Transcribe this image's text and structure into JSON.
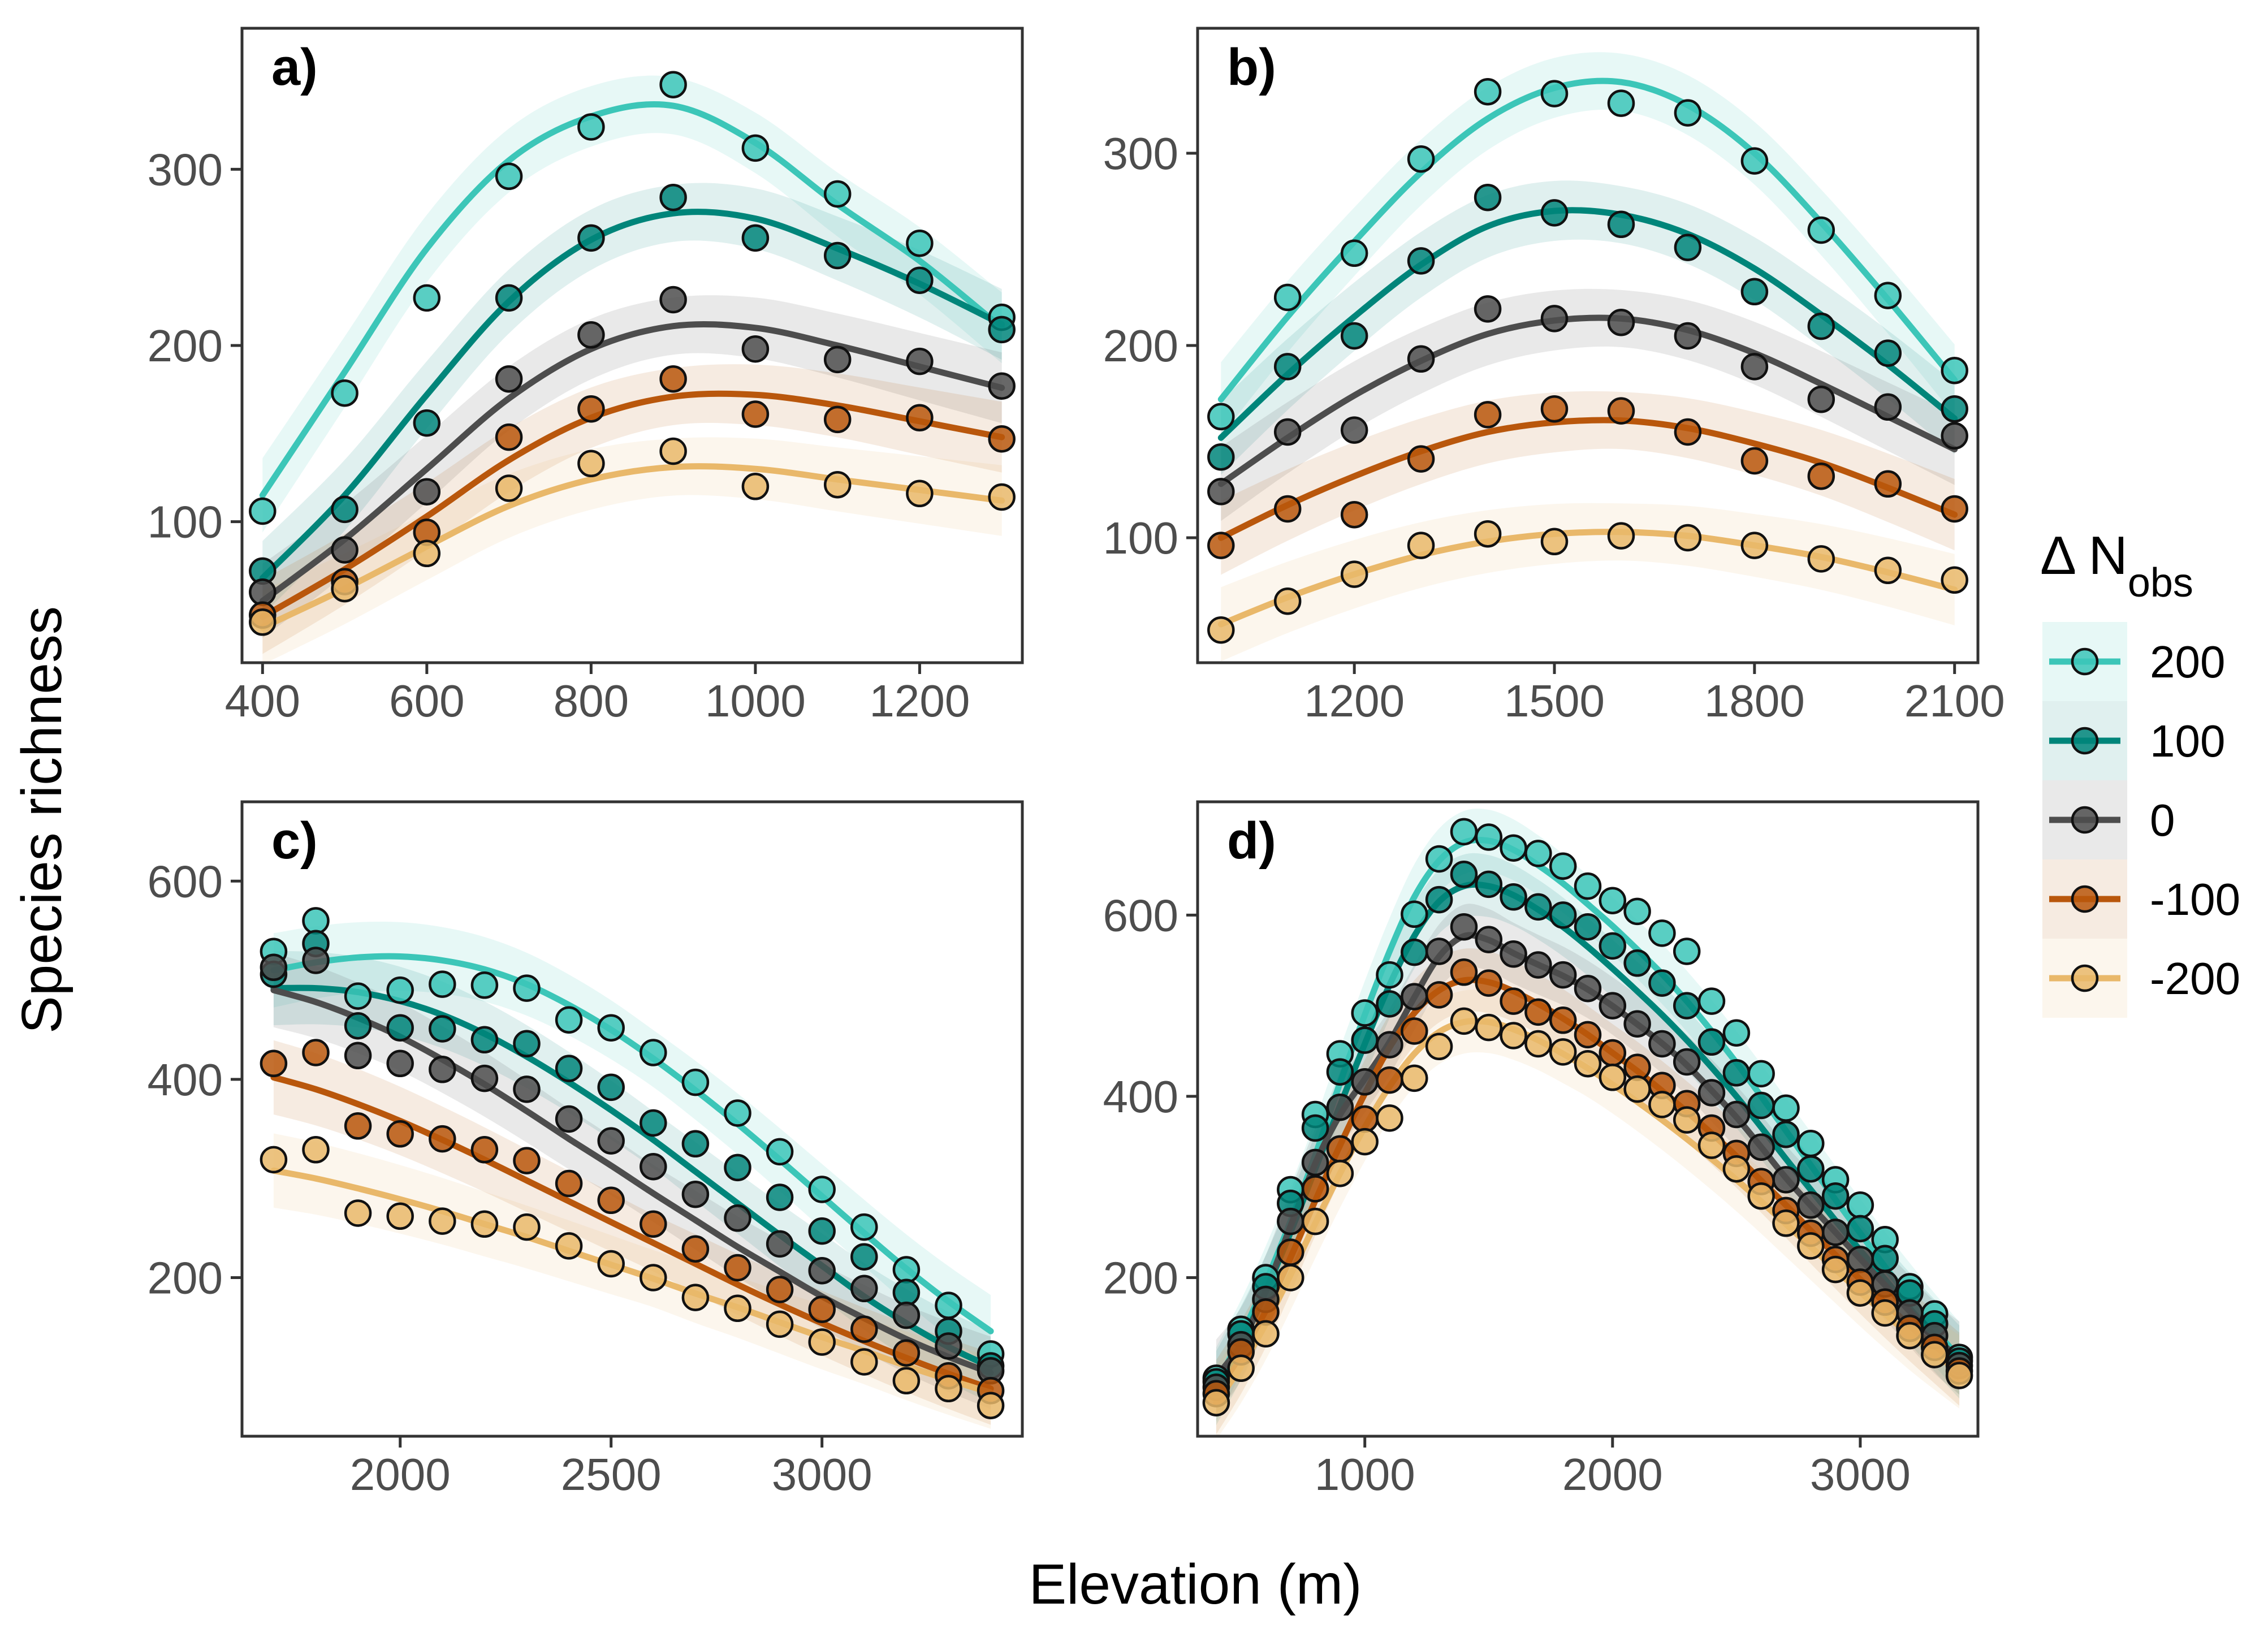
{
  "figure": {
    "xlabel": "Elevation (m)",
    "ylabel": "Species richness"
  },
  "legend": {
    "title_prefix": "Δ N",
    "title_sub": "obs",
    "entries": [
      {
        "label": "200",
        "color": "#3cc6b8"
      },
      {
        "label": "100",
        "color": "#00857a"
      },
      {
        "label": "0",
        "color": "#4d4d4d"
      },
      {
        "label": "-100",
        "color": "#b9570c"
      },
      {
        "label": "-200",
        "color": "#e9b86a"
      }
    ]
  },
  "chart_data": [
    {
      "type": "scatter",
      "label": "a)",
      "xlim": [
        375,
        1325
      ],
      "ylim": [
        20,
        380
      ],
      "xticks": [
        400,
        600,
        800,
        1000,
        1200
      ],
      "yticks": [
        100,
        200,
        300
      ],
      "x": [
        400,
        500,
        600,
        700,
        800,
        900,
        1000,
        1100,
        1200,
        1300
      ],
      "series": [
        {
          "name": "200",
          "points": [
            106,
            173,
            227,
            296,
            324,
            348,
            312,
            286,
            258,
            216
          ],
          "fit": [
            115,
            185,
            255,
            305,
            330,
            336,
            315,
            280,
            248,
            210
          ]
        },
        {
          "name": "100",
          "points": [
            72,
            107,
            156,
            227,
            261,
            284,
            261,
            251,
            237,
            209
          ],
          "fit": [
            68,
            115,
            172,
            225,
            260,
            275,
            272,
            255,
            235,
            212
          ]
        },
        {
          "name": "0",
          "points": [
            60,
            84,
            117,
            181,
            206,
            226,
            198,
            192,
            191,
            177
          ],
          "fit": [
            55,
            90,
            130,
            170,
            198,
            211,
            210,
            200,
            188,
            176
          ]
        },
        {
          "name": "-100",
          "points": [
            47,
            66,
            94,
            148,
            164,
            181,
            161,
            158,
            159,
            147
          ],
          "fit": [
            46,
            73,
            103,
            135,
            159,
            171,
            172,
            166,
            157,
            148
          ]
        },
        {
          "name": "-200",
          "points": [
            43,
            62,
            82,
            119,
            133,
            140,
            120,
            121,
            116,
            114
          ],
          "fit": [
            40,
            62,
            86,
            109,
            124,
            131,
            130,
            124,
            118,
            112
          ]
        }
      ]
    },
    {
      "type": "scatter",
      "label": "b)",
      "xlim": [
        965,
        2135
      ],
      "ylim": [
        35,
        365
      ],
      "xticks": [
        1200,
        1500,
        1800,
        2100
      ],
      "yticks": [
        100,
        200,
        300
      ],
      "x": [
        1000,
        1100,
        1200,
        1300,
        1400,
        1500,
        1600,
        1700,
        1800,
        1900,
        2000,
        2100
      ],
      "series": [
        {
          "name": "200",
          "points": [
            163,
            225,
            248,
            297,
            332,
            331,
            326,
            321,
            296,
            260,
            226,
            187
          ],
          "fit": [
            172,
            215,
            254,
            290,
            318,
            334,
            337,
            325,
            300,
            264,
            224,
            182
          ]
        },
        {
          "name": "100",
          "points": [
            142,
            189,
            205,
            244,
            277,
            269,
            263,
            251,
            228,
            210,
            196,
            167
          ],
          "fit": [
            152,
            185,
            215,
            242,
            262,
            270,
            268,
            258,
            240,
            216,
            190,
            162
          ]
        },
        {
          "name": "0",
          "points": [
            124,
            155,
            156,
            193,
            219,
            214,
            212,
            205,
            189,
            172,
            168,
            153
          ],
          "fit": [
            128,
            152,
            174,
            192,
            206,
            213,
            214,
            208,
            196,
            180,
            163,
            146
          ]
        },
        {
          "name": "-100",
          "points": [
            96,
            115,
            112,
            141,
            164,
            167,
            166,
            155,
            140,
            132,
            128,
            115
          ],
          "fit": [
            100,
            117,
            132,
            145,
            155,
            160,
            161,
            157,
            149,
            139,
            126,
            112
          ]
        },
        {
          "name": "-200",
          "points": [
            52,
            67,
            81,
            96,
            102,
            98,
            101,
            100,
            96,
            89,
            83,
            78
          ],
          "fit": [
            55,
            69,
            81,
            91,
            98,
            102,
            103,
            101,
            96,
            90,
            82,
            73
          ]
        }
      ]
    },
    {
      "type": "scatter",
      "label": "c)",
      "xlim": [
        1625,
        3475
      ],
      "ylim": [
        40,
        680
      ],
      "xticks": [
        2000,
        2500,
        3000
      ],
      "yticks": [
        200,
        400,
        600
      ],
      "x": [
        1700,
        1800,
        1900,
        2000,
        2100,
        2200,
        2300,
        2400,
        2500,
        2600,
        2700,
        2800,
        2900,
        3000,
        3100,
        3200,
        3300,
        3400
      ],
      "series": [
        {
          "name": "200",
          "points": [
            529,
            560,
            484,
            490,
            496,
            495,
            492,
            460,
            452,
            427,
            397,
            366,
            327,
            289,
            251,
            208,
            172,
            123
          ],
          "fit": [
            510,
            518,
            523,
            524,
            520,
            511,
            496,
            475,
            450,
            421,
            389,
            355,
            319,
            282,
            245,
            209,
            176,
            146
          ]
        },
        {
          "name": "100",
          "points": [
            506,
            537,
            454,
            452,
            451,
            440,
            436,
            411,
            392,
            356,
            335,
            311,
            281,
            247,
            221,
            185,
            146,
            111
          ],
          "fit": [
            492,
            492,
            488,
            479,
            465,
            446,
            423,
            397,
            369,
            339,
            307,
            275,
            243,
            212,
            181,
            154,
            130,
            110
          ]
        },
        {
          "name": "0",
          "points": [
            513,
            520,
            424,
            416,
            410,
            401,
            390,
            360,
            338,
            312,
            284,
            260,
            234,
            207,
            189,
            162,
            131,
            106
          ],
          "fit": [
            490,
            478,
            462,
            443,
            420,
            395,
            368,
            340,
            313,
            285,
            258,
            231,
            206,
            181,
            159,
            138,
            120,
            104
          ]
        },
        {
          "name": "-100",
          "points": [
            416,
            427,
            353,
            345,
            340,
            329,
            318,
            295,
            278,
            254,
            229,
            210,
            188,
            168,
            148,
            124,
            101,
            86
          ],
          "fit": [
            402,
            390,
            375,
            358,
            339,
            319,
            298,
            277,
            256,
            235,
            214,
            193,
            173,
            154,
            136,
            119,
            103,
            88
          ]
        },
        {
          "name": "-200",
          "points": [
            319,
            329,
            265,
            262,
            257,
            254,
            251,
            232,
            214,
            200,
            180,
            169,
            153,
            135,
            115,
            96,
            88,
            71
          ],
          "fit": [
            308,
            300,
            290,
            279,
            267,
            254,
            241,
            227,
            213,
            199,
            184,
            170,
            155,
            140,
            126,
            111,
            97,
            84
          ]
        }
      ]
    },
    {
      "type": "scatter",
      "label": "d)",
      "xlim": [
        325,
        3475
      ],
      "ylim": [
        25,
        725
      ],
      "xticks": [
        1000,
        2000,
        3000
      ],
      "yticks": [
        200,
        400,
        600
      ],
      "x": [
        400,
        500,
        600,
        700,
        800,
        900,
        1000,
        1100,
        1200,
        1300,
        1400,
        1500,
        1600,
        1700,
        1800,
        1900,
        2000,
        2100,
        2200,
        2300,
        2400,
        2500,
        2600,
        2700,
        2800,
        2900,
        3000,
        3100,
        3200,
        3300,
        3400
      ],
      "series": [
        {
          "name": "200",
          "points": [
            89,
            143,
            200,
            297,
            380,
            447,
            492,
            534,
            601,
            662,
            692,
            686,
            674,
            668,
            654,
            632,
            616,
            604,
            580,
            560,
            505,
            470,
            425,
            387,
            348,
            308,
            280,
            242,
            190,
            160,
            112
          ],
          "fit": [
            82,
            135,
            195,
            262,
            335,
            415,
            490,
            560,
            620,
            660,
            680,
            682,
            672,
            655,
            635,
            612,
            588,
            562,
            535,
            505,
            472,
            437,
            400,
            362,
            324,
            286,
            249,
            212,
            177,
            143,
            111
          ]
        },
        {
          "name": "100",
          "points": [
            85,
            138,
            190,
            282,
            365,
            427,
            462,
            502,
            559,
            617,
            645,
            634,
            620,
            609,
            600,
            587,
            566,
            547,
            525,
            500,
            460,
            426,
            390,
            358,
            320,
            290,
            254,
            221,
            183,
            149,
            108
          ],
          "fit": [
            78,
            128,
            185,
            250,
            320,
            390,
            458,
            523,
            577,
            615,
            632,
            632,
            622,
            606,
            587,
            565,
            541,
            516,
            490,
            462,
            432,
            400,
            366,
            331,
            297,
            263,
            230,
            198,
            166,
            136,
            107
          ]
        },
        {
          "name": "0",
          "points": [
            79,
            126,
            176,
            262,
            327,
            388,
            416,
            457,
            510,
            560,
            587,
            573,
            557,
            545,
            534,
            519,
            500,
            480,
            458,
            438,
            404,
            380,
            344,
            308,
            280,
            250,
            220,
            193,
            161,
            136,
            103
          ]
        },
        {
          "name": "-100",
          "points": [
            72,
            118,
            162,
            228,
            298,
            342,
            375,
            418,
            472,
            512,
            537,
            525,
            505,
            493,
            484,
            468,
            448,
            432,
            412,
            392,
            365,
            337,
            306,
            274,
            249,
            220,
            195,
            173,
            144,
            123,
            97
          ],
          "fit": [
            68,
            112,
            163,
            222,
            285,
            346,
            403,
            454,
            492,
            517,
            528,
            526,
            516,
            502,
            486,
            468,
            448,
            428,
            406,
            383,
            359,
            334,
            307,
            280,
            252,
            225,
            198,
            172,
            147,
            123,
            99
          ]
        },
        {
          "name": "-200",
          "points": [
            62,
            100,
            138,
            200,
            262,
            315,
            350,
            376,
            420,
            455,
            483,
            476,
            467,
            458,
            449,
            436,
            421,
            408,
            391,
            374,
            346,
            320,
            290,
            260,
            235,
            209,
            183,
            161,
            136,
            115,
            92
          ],
          "fit": [
            62,
            102,
            149,
            203,
            260,
            315,
            366,
            411,
            447,
            471,
            482,
            482,
            474,
            462,
            447,
            431,
            413,
            394,
            374,
            353,
            331,
            308,
            284,
            259,
            234,
            209,
            184,
            160,
            137,
            116,
            96
          ]
        }
      ]
    }
  ]
}
